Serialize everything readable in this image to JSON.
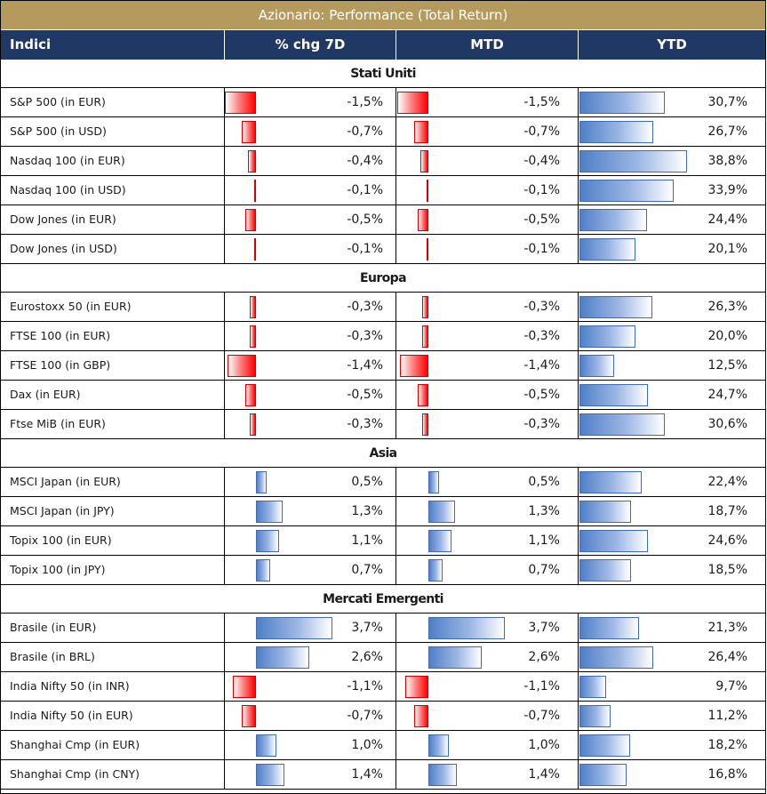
{
  "title": "Azionario: Performance (Total Return)",
  "headers": {
    "name": "Indici",
    "chg7d": "% chg 7D",
    "mtd": "MTD",
    "ytd": "YTD"
  },
  "colors": {
    "title_bg": "#b59a5e",
    "header_bg": "#1f3864",
    "neg_bar": "#ff0000",
    "pos_bar": "#4f7fc8"
  },
  "chart_data": {
    "type": "table",
    "title": "Azionario: Performance (Total Return)",
    "columns": [
      "Indici",
      "% chg 7D",
      "MTD",
      "YTD"
    ],
    "sections": [
      {
        "name": "Stati Uniti",
        "rows": [
          {
            "label": "S&P 500 (in EUR)",
            "chg7d": -1.5,
            "mtd": -1.5,
            "ytd": 30.7,
            "chg7d_text": "-1,5%",
            "mtd_text": "-1,5%",
            "ytd_text": "30,7%"
          },
          {
            "label": "S&P 500 (in USD)",
            "chg7d": -0.7,
            "mtd": -0.7,
            "ytd": 26.7,
            "chg7d_text": "-0,7%",
            "mtd_text": "-0,7%",
            "ytd_text": "26,7%"
          },
          {
            "label": "Nasdaq 100 (in EUR)",
            "chg7d": -0.4,
            "mtd": -0.4,
            "ytd": 38.8,
            "chg7d_text": "-0,4%",
            "mtd_text": "-0,4%",
            "ytd_text": "38,8%"
          },
          {
            "label": "Nasdaq 100 (in USD)",
            "chg7d": -0.1,
            "mtd": -0.1,
            "ytd": 33.9,
            "chg7d_text": "-0,1%",
            "mtd_text": "-0,1%",
            "ytd_text": "33,9%"
          },
          {
            "label": "Dow Jones (in EUR)",
            "chg7d": -0.5,
            "mtd": -0.5,
            "ytd": 24.4,
            "chg7d_text": "-0,5%",
            "mtd_text": "-0,5%",
            "ytd_text": "24,4%"
          },
          {
            "label": "Dow Jones (in USD)",
            "chg7d": -0.1,
            "mtd": -0.1,
            "ytd": 20.1,
            "chg7d_text": "-0,1%",
            "mtd_text": "-0,1%",
            "ytd_text": "20,1%"
          }
        ]
      },
      {
        "name": "Europa",
        "rows": [
          {
            "label": "Eurostoxx 50 (in EUR)",
            "chg7d": -0.3,
            "mtd": -0.3,
            "ytd": 26.3,
            "chg7d_text": "-0,3%",
            "mtd_text": "-0,3%",
            "ytd_text": "26,3%"
          },
          {
            "label": "FTSE 100 (in EUR)",
            "chg7d": -0.3,
            "mtd": -0.3,
            "ytd": 20.0,
            "chg7d_text": "-0,3%",
            "mtd_text": "-0,3%",
            "ytd_text": "20,0%"
          },
          {
            "label": "FTSE 100 (in GBP)",
            "chg7d": -1.4,
            "mtd": -1.4,
            "ytd": 12.5,
            "chg7d_text": "-1,4%",
            "mtd_text": "-1,4%",
            "ytd_text": "12,5%"
          },
          {
            "label": "Dax (in EUR)",
            "chg7d": -0.5,
            "mtd": -0.5,
            "ytd": 24.7,
            "chg7d_text": "-0,5%",
            "mtd_text": "-0,5%",
            "ytd_text": "24,7%"
          },
          {
            "label": "Ftse MiB (in EUR)",
            "chg7d": -0.3,
            "mtd": -0.3,
            "ytd": 30.6,
            "chg7d_text": "-0,3%",
            "mtd_text": "-0,3%",
            "ytd_text": "30,6%"
          }
        ]
      },
      {
        "name": "Asia",
        "rows": [
          {
            "label": "MSCI Japan (in EUR)",
            "chg7d": 0.5,
            "mtd": 0.5,
            "ytd": 22.4,
            "chg7d_text": "0,5%",
            "mtd_text": "0,5%",
            "ytd_text": "22,4%"
          },
          {
            "label": "MSCI Japan (in JPY)",
            "chg7d": 1.3,
            "mtd": 1.3,
            "ytd": 18.7,
            "chg7d_text": "1,3%",
            "mtd_text": "1,3%",
            "ytd_text": "18,7%"
          },
          {
            "label": "Topix 100 (in EUR)",
            "chg7d": 1.1,
            "mtd": 1.1,
            "ytd": 24.6,
            "chg7d_text": "1,1%",
            "mtd_text": "1,1%",
            "ytd_text": "24,6%"
          },
          {
            "label": "Topix 100 (in JPY)",
            "chg7d": 0.7,
            "mtd": 0.7,
            "ytd": 18.5,
            "chg7d_text": "0,7%",
            "mtd_text": "0,7%",
            "ytd_text": "18,5%"
          }
        ]
      },
      {
        "name": "Mercati Emergenti",
        "rows": [
          {
            "label": "Brasile (in EUR)",
            "chg7d": 3.7,
            "mtd": 3.7,
            "ytd": 21.3,
            "chg7d_text": "3,7%",
            "mtd_text": "3,7%",
            "ytd_text": "21,3%"
          },
          {
            "label": "Brasile (in BRL)",
            "chg7d": 2.6,
            "mtd": 2.6,
            "ytd": 26.4,
            "chg7d_text": "2,6%",
            "mtd_text": "2,6%",
            "ytd_text": "26,4%"
          },
          {
            "label": "India Nifty 50 (in INR)",
            "chg7d": -1.1,
            "mtd": -1.1,
            "ytd": 9.7,
            "chg7d_text": "-1,1%",
            "mtd_text": "-1,1%",
            "ytd_text": "9,7%"
          },
          {
            "label": "India Nifty 50 (in EUR)",
            "chg7d": -0.7,
            "mtd": -0.7,
            "ytd": 11.2,
            "chg7d_text": "-0,7%",
            "mtd_text": "-0,7%",
            "ytd_text": "11,2%"
          },
          {
            "label": "Shanghai Cmp (in EUR)",
            "chg7d": 1.0,
            "mtd": 1.0,
            "ytd": 18.2,
            "chg7d_text": "1,0%",
            "mtd_text": "1,0%",
            "ytd_text": "18,2%"
          },
          {
            "label": "Shanghai Cmp (in CNY)",
            "chg7d": 1.4,
            "mtd": 1.4,
            "ytd": 16.8,
            "chg7d_text": "1,4%",
            "mtd_text": "1,4%",
            "ytd_text": "16,8%"
          }
        ]
      }
    ]
  }
}
